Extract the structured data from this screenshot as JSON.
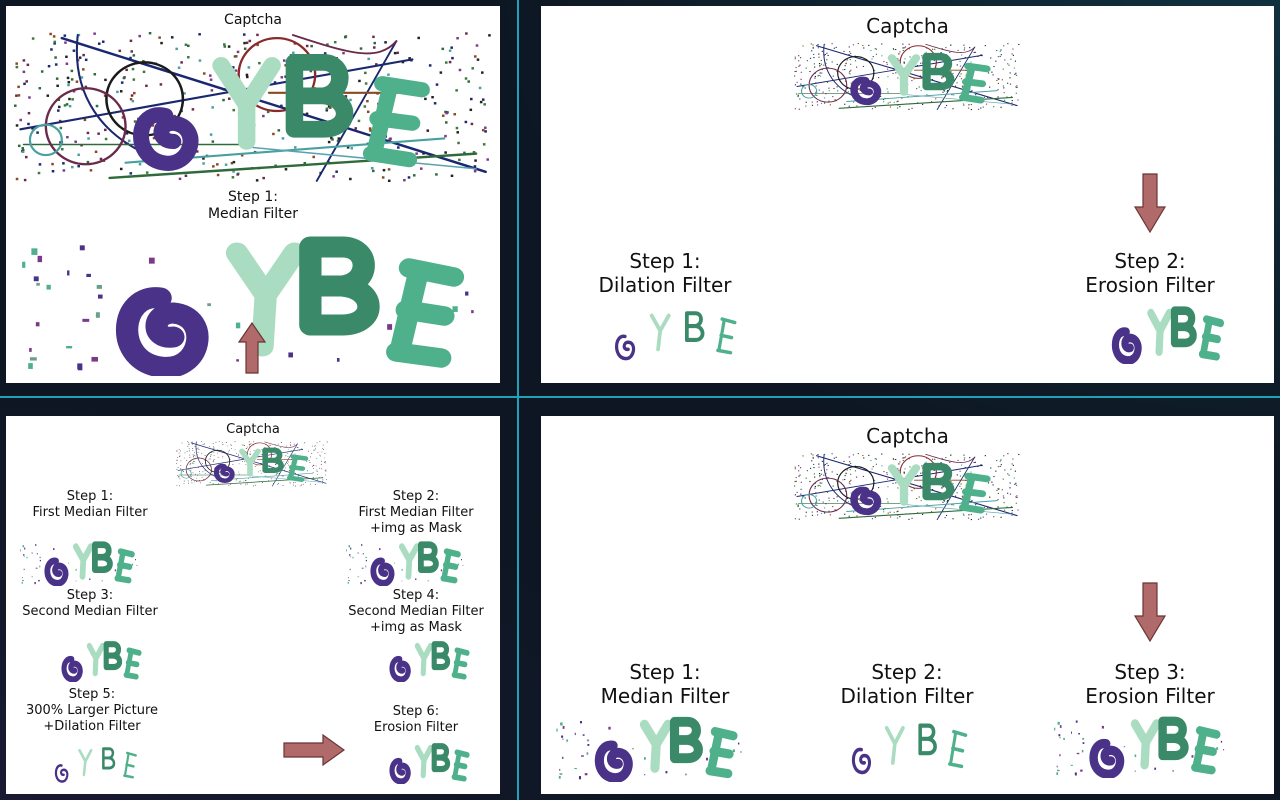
{
  "colors": {
    "background": "#0d1622",
    "divider": "#1fa2b8",
    "panel": "#ffffff",
    "arrow_fill": "#b06a6a",
    "arrow_stroke": "#6b3535",
    "glyph_purple": "#4a3288",
    "glyph_green": "#3a8a6a",
    "glyph_mint": "#a9dcc0",
    "glyph_teal": "#4fb08c"
  },
  "icons": {
    "arrow": "block-arrow",
    "captcha": "captcha-image",
    "filtered": "filtered-image"
  },
  "panel1": {
    "captcha_label": "Captcha",
    "step1_label": "Step 1:\nMedian Filter"
  },
  "panel2": {
    "captcha_label": "Captcha",
    "step1_label": "Step 1:\nDilation Filter",
    "step2_label": "Step 2:\nErosion Filter"
  },
  "panel3": {
    "captcha_label": "Captcha",
    "step1_label": "Step 1:\nFirst Median Filter",
    "step2_label": "Step 2:\nFirst Median Filter\n+img as Mask",
    "step3_label": "Step 3:\nSecond Median Filter",
    "step4_label": "Step 4:\nSecond Median Filter\n+img as Mask",
    "step5_label": "Step 5:\n300% Larger Picture\n+Dilation Filter",
    "step6_label": "Step 6:\nErosion Filter"
  },
  "panel4": {
    "captcha_label": "Captcha",
    "step1_label": "Step 1:\nMedian Filter",
    "step2_label": "Step 2:\nDilation Filter",
    "step3_label": "Step 3:\nErosion Filter"
  }
}
